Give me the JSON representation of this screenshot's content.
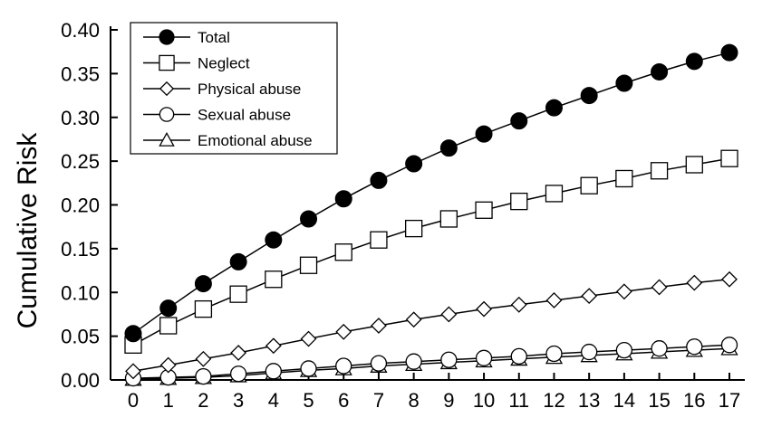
{
  "chart_data": {
    "type": "line",
    "title": "",
    "xlabel": "",
    "ylabel": "Cumulative Risk",
    "x": [
      0,
      1,
      2,
      3,
      4,
      5,
      6,
      7,
      8,
      9,
      10,
      11,
      12,
      13,
      14,
      15,
      16,
      17
    ],
    "xlim": [
      0,
      17
    ],
    "ylim": [
      0,
      0.4
    ],
    "y_ticks": [
      "0.00",
      "0.05",
      "0.10",
      "0.15",
      "0.20",
      "0.25",
      "0.30",
      "0.35",
      "0.40"
    ],
    "x_ticks": [
      "0",
      "1",
      "2",
      "3",
      "4",
      "5",
      "6",
      "7",
      "8",
      "9",
      "10",
      "11",
      "12",
      "13",
      "14",
      "15",
      "16",
      "17"
    ],
    "grid": false,
    "legend_position": "top-left",
    "series": [
      {
        "name": "Total",
        "marker": "filled-circle",
        "values": [
          0.053,
          0.082,
          0.11,
          0.135,
          0.16,
          0.184,
          0.207,
          0.228,
          0.247,
          0.265,
          0.281,
          0.296,
          0.311,
          0.325,
          0.339,
          0.352,
          0.364,
          0.374
        ]
      },
      {
        "name": "Neglect",
        "marker": "square",
        "values": [
          0.04,
          0.062,
          0.081,
          0.098,
          0.115,
          0.131,
          0.146,
          0.16,
          0.173,
          0.184,
          0.194,
          0.204,
          0.213,
          0.222,
          0.23,
          0.239,
          0.246,
          0.253
        ]
      },
      {
        "name": "Physical abuse",
        "marker": "diamond",
        "values": [
          0.01,
          0.017,
          0.024,
          0.031,
          0.039,
          0.047,
          0.055,
          0.062,
          0.069,
          0.075,
          0.081,
          0.086,
          0.091,
          0.096,
          0.101,
          0.106,
          0.111,
          0.115
        ]
      },
      {
        "name": "Sexual abuse",
        "marker": "open-circle",
        "values": [
          0.002,
          0.003,
          0.004,
          0.007,
          0.01,
          0.013,
          0.016,
          0.019,
          0.021,
          0.023,
          0.025,
          0.027,
          0.03,
          0.032,
          0.034,
          0.036,
          0.038,
          0.04
        ]
      },
      {
        "name": "Emotional abuse",
        "marker": "triangle",
        "values": [
          0.001,
          0.002,
          0.003,
          0.005,
          0.008,
          0.011,
          0.013,
          0.016,
          0.018,
          0.02,
          0.022,
          0.024,
          0.026,
          0.028,
          0.03,
          0.032,
          0.034,
          0.036
        ]
      }
    ]
  }
}
